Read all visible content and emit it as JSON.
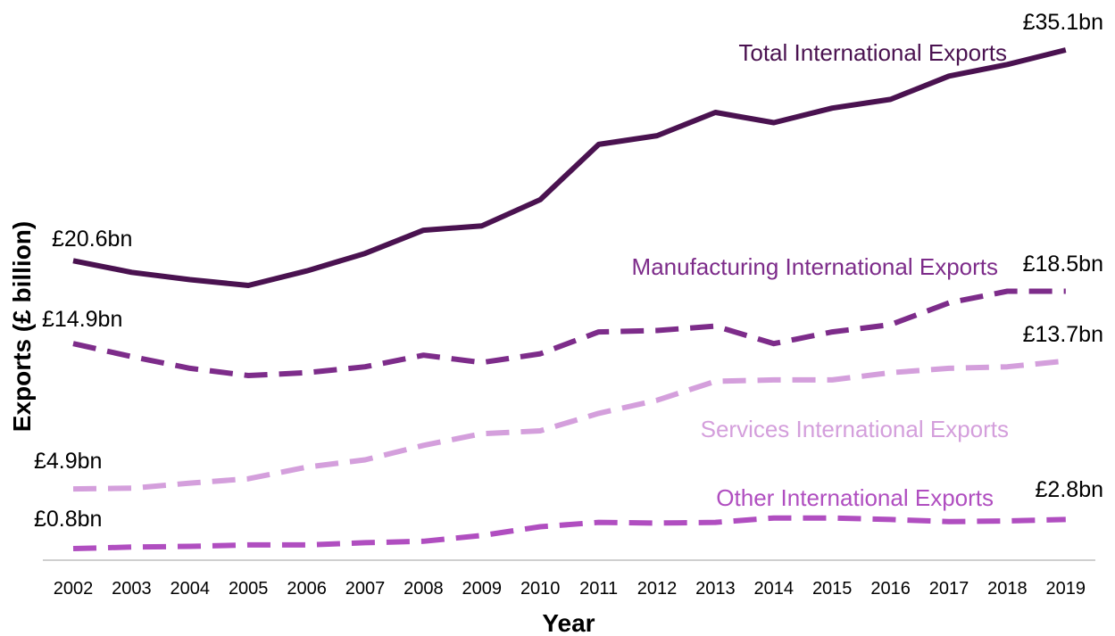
{
  "chart_data": {
    "type": "line",
    "xlabel": "Year",
    "ylabel": "Exports (£ billion)",
    "x": [
      "2002",
      "2003",
      "2004",
      "2005",
      "2006",
      "2007",
      "2008",
      "2009",
      "2010",
      "2011",
      "2012",
      "2013",
      "2014",
      "2015",
      "2016",
      "2017",
      "2018",
      "2019"
    ],
    "ylim": [
      0,
      37
    ],
    "grid": false,
    "legend": "inline labels",
    "series": [
      {
        "name": "Total International Exports",
        "color": "#4a1250",
        "dash": "solid",
        "values": [
          20.6,
          19.8,
          19.3,
          18.9,
          19.9,
          21.1,
          22.7,
          23.0,
          24.8,
          28.6,
          29.2,
          30.8,
          30.1,
          31.1,
          31.7,
          33.3,
          34.1,
          35.1
        ],
        "start_label": "£20.6bn",
        "end_label": "£35.1bn"
      },
      {
        "name": "Manufacturing International Exports",
        "color": "#7d2c8a",
        "dash": "dashed",
        "values": [
          14.9,
          14.0,
          13.2,
          12.7,
          12.9,
          13.3,
          14.1,
          13.6,
          14.2,
          15.7,
          15.8,
          16.1,
          14.9,
          15.7,
          16.2,
          17.7,
          18.5,
          18.5
        ],
        "start_label": "£14.9bn",
        "end_label": "£18.5bn"
      },
      {
        "name": "Services International Exports",
        "color": "#d49fdc",
        "dash": "dashed",
        "values": [
          4.9,
          4.95,
          5.3,
          5.6,
          6.4,
          6.9,
          7.9,
          8.7,
          8.9,
          10.1,
          11.0,
          12.3,
          12.4,
          12.4,
          12.9,
          13.2,
          13.3,
          13.7
        ],
        "start_label": "£4.9bn",
        "end_label": "£13.7bn"
      },
      {
        "name": "Other International Exports",
        "color": "#b04ec0",
        "dash": "dashed",
        "values": [
          0.8,
          0.9,
          0.95,
          1.05,
          1.05,
          1.2,
          1.3,
          1.7,
          2.3,
          2.6,
          2.55,
          2.6,
          2.9,
          2.9,
          2.8,
          2.65,
          2.7,
          2.8
        ],
        "start_label": "£0.8bn",
        "end_label": "£2.8bn"
      }
    ]
  }
}
